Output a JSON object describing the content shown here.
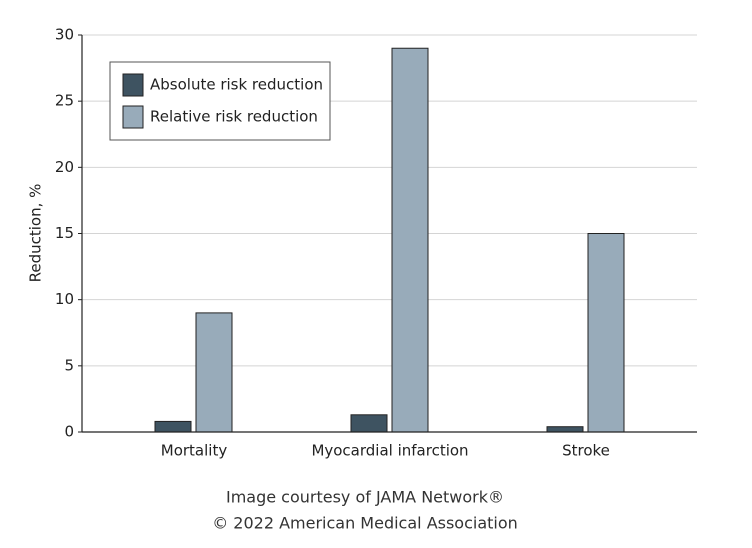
{
  "chart_data": {
    "type": "bar",
    "y_label": "Reduction, %",
    "categories": [
      "Mortality",
      "Myocardial infarction",
      "Stroke"
    ],
    "series": [
      {
        "name": "Absolute risk reduction",
        "color": "#3e5361",
        "values": [
          0.8,
          1.3,
          0.4
        ]
      },
      {
        "name": "Relative risk reduction",
        "color": "#98abba",
        "values": [
          9,
          29,
          15
        ]
      }
    ],
    "ylim": [
      0,
      30
    ],
    "yticks": [
      0,
      5,
      10,
      15,
      20,
      25,
      30
    ],
    "grid": true,
    "legend": "upper-left",
    "credits": [
      "Image courtesy of JAMA Network®",
      "© 2022 American Medical Association"
    ]
  }
}
